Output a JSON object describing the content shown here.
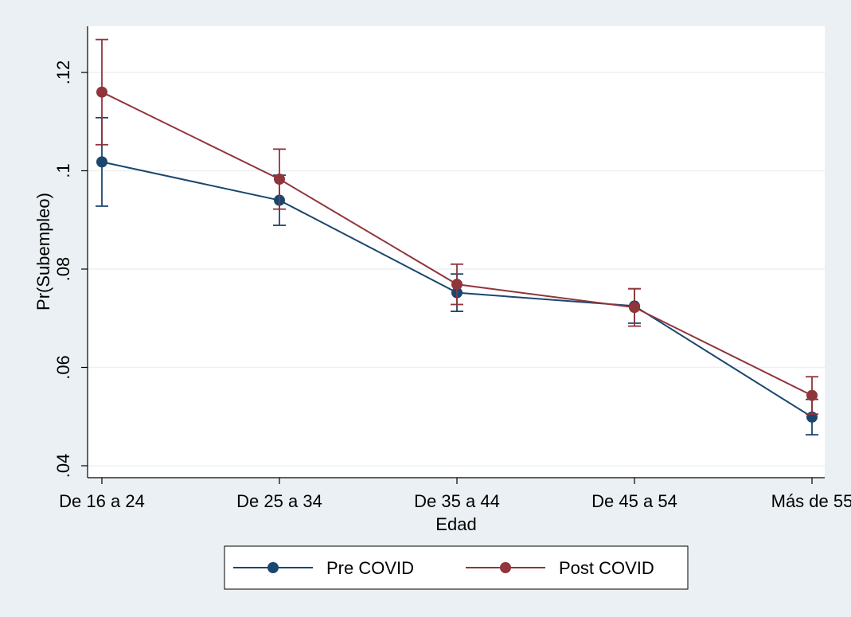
{
  "chart_data": {
    "type": "line",
    "xlabel": "Edad",
    "ylabel": "Pr(Subempleo)",
    "categories": [
      "De 16 a 24",
      "De 25 a 34",
      "De 35 a 44",
      "De 45 a 54",
      "Más de 55"
    ],
    "ylim": [
      0.04,
      0.12
    ],
    "yticks": [
      0.04,
      0.06,
      0.08,
      0.1,
      0.12
    ],
    "ytick_labels": [
      ".04",
      ".06",
      ".08",
      ".1",
      ".12"
    ],
    "grid": true,
    "legend_position": "bottom",
    "series": [
      {
        "name": "Pre COVID",
        "color": "#1a476f",
        "values": [
          0.1018,
          0.094,
          0.0752,
          0.0725,
          0.0499
        ],
        "ci_low": [
          0.0928,
          0.0889,
          0.0714,
          0.069,
          0.0463
        ],
        "ci_high": [
          0.1108,
          0.0991,
          0.079,
          0.076,
          0.0535
        ]
      },
      {
        "name": "Post COVID",
        "color": "#90353b",
        "values": [
          0.116,
          0.0983,
          0.0769,
          0.0722,
          0.0543
        ],
        "ci_low": [
          0.1053,
          0.0922,
          0.0728,
          0.0684,
          0.0505
        ],
        "ci_high": [
          0.1267,
          0.1044,
          0.081,
          0.076,
          0.0581
        ]
      }
    ]
  }
}
